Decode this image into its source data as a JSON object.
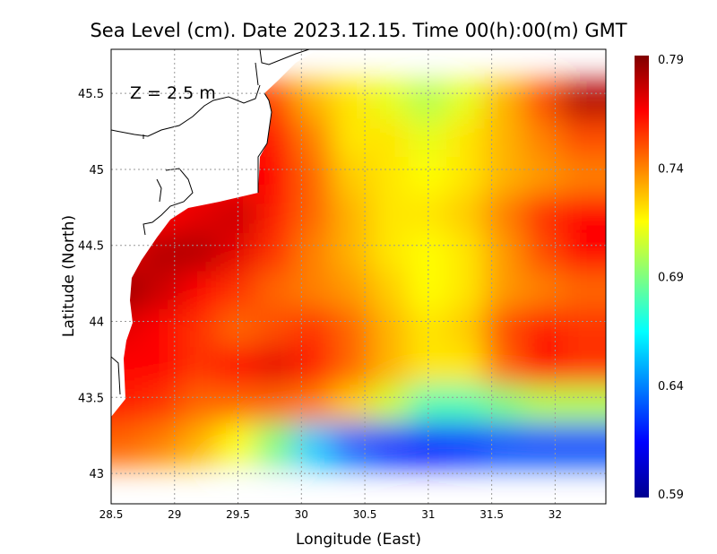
{
  "chart_data": {
    "type": "heatmap",
    "title": "Sea Level (cm). Date 2023.12.15. Time 00(h):00(m) GMT",
    "annotation": "Z = 2.5 m",
    "xlabel": "Longitude (East)",
    "ylabel": "Latitude (North)",
    "xlim": [
      28.5,
      32.4
    ],
    "ylim": [
      42.8,
      45.79
    ],
    "xticks": [
      "28.5",
      "29",
      "29.5",
      "30",
      "30.5",
      "31",
      "31.5",
      "32"
    ],
    "xtick_values": [
      28.5,
      29,
      29.5,
      30,
      30.5,
      31,
      31.5,
      32
    ],
    "yticks": [
      "43",
      "43.5",
      "44",
      "44.5",
      "45",
      "45.5"
    ],
    "ytick_values": [
      43,
      43.5,
      44,
      44.5,
      45,
      45.5
    ],
    "grid": true,
    "colorbar": {
      "range": [
        0.59,
        0.79
      ],
      "ticks": [
        "0.79",
        "0.74",
        "0.69",
        "0.64",
        "0.59"
      ],
      "tick_values": [
        0.79,
        0.74,
        0.69,
        0.64,
        0.59
      ],
      "colormap": [
        "#00008f",
        "#0000ff",
        "#00ffff",
        "#80ff80",
        "#ffff00",
        "#ff0000",
        "#800000"
      ]
    },
    "grid_lon": [
      28.6,
      28.9,
      29.2,
      29.5,
      29.8,
      30.1,
      30.4,
      30.7,
      31.0,
      31.3,
      31.6,
      31.9,
      32.2
    ],
    "grid_lat": [
      45.7,
      45.45,
      45.2,
      44.95,
      44.7,
      44.45,
      44.2,
      43.95,
      43.7,
      43.45,
      43.2,
      42.9
    ],
    "values": [
      [
        null,
        null,
        null,
        null,
        null,
        0.73,
        0.72,
        0.71,
        0.69,
        0.7,
        0.74,
        0.76,
        0.78
      ],
      [
        null,
        null,
        null,
        null,
        0.75,
        0.73,
        0.72,
        0.71,
        0.7,
        0.71,
        0.73,
        0.75,
        0.78
      ],
      [
        null,
        null,
        null,
        null,
        0.76,
        0.74,
        0.72,
        0.72,
        0.71,
        0.72,
        0.73,
        0.74,
        0.75
      ],
      [
        null,
        null,
        null,
        null,
        0.765,
        0.745,
        0.725,
        0.72,
        0.715,
        0.72,
        0.73,
        0.735,
        0.74
      ],
      [
        null,
        null,
        0.77,
        0.775,
        0.76,
        0.745,
        0.73,
        0.72,
        0.72,
        0.725,
        0.74,
        0.755,
        0.765
      ],
      [
        0.77,
        0.78,
        0.78,
        0.77,
        0.755,
        0.74,
        0.73,
        0.72,
        0.715,
        0.72,
        0.735,
        0.75,
        0.765
      ],
      [
        0.785,
        0.775,
        0.765,
        0.755,
        0.745,
        0.74,
        0.735,
        0.725,
        0.715,
        0.72,
        0.735,
        0.74,
        0.745
      ],
      [
        0.77,
        0.765,
        0.755,
        0.745,
        0.75,
        0.755,
        0.745,
        0.73,
        0.72,
        0.725,
        0.75,
        0.76,
        0.755
      ],
      [
        0.765,
        0.765,
        0.755,
        0.765,
        0.77,
        0.76,
        0.745,
        0.73,
        0.72,
        0.72,
        0.745,
        0.765,
        0.755
      ],
      [
        0.76,
        0.755,
        0.745,
        0.745,
        0.745,
        0.74,
        0.725,
        0.705,
        0.68,
        0.68,
        0.69,
        0.7,
        0.7
      ],
      [
        0.745,
        0.74,
        0.73,
        0.715,
        0.69,
        0.655,
        0.635,
        0.625,
        0.62,
        0.625,
        0.63,
        0.63,
        0.63
      ],
      [
        0.74,
        0.725,
        0.705,
        0.665,
        0.62,
        0.605,
        0.61,
        0.615,
        0.615,
        0.62,
        0.615,
        0.605,
        0.595
      ]
    ]
  }
}
